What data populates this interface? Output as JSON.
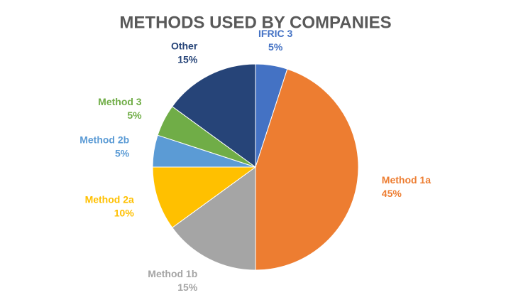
{
  "chart_data": {
    "type": "pie",
    "title": "METHODS USED BY COMPANIES",
    "categories": [
      "IFRIC 3",
      "Method 1a",
      "Method 1b",
      "Method 2a",
      "Method 2b",
      "Method 3",
      "Other"
    ],
    "values": [
      5,
      45,
      15,
      10,
      5,
      5,
      15
    ],
    "value_labels": [
      "5%",
      "45%",
      "15%",
      "10%",
      "5%",
      "5%",
      "15%"
    ],
    "colors": [
      "#4472c4",
      "#ed7d31",
      "#a5a5a5",
      "#ffc000",
      "#5b9bd5",
      "#70ad47",
      "#264478"
    ]
  }
}
